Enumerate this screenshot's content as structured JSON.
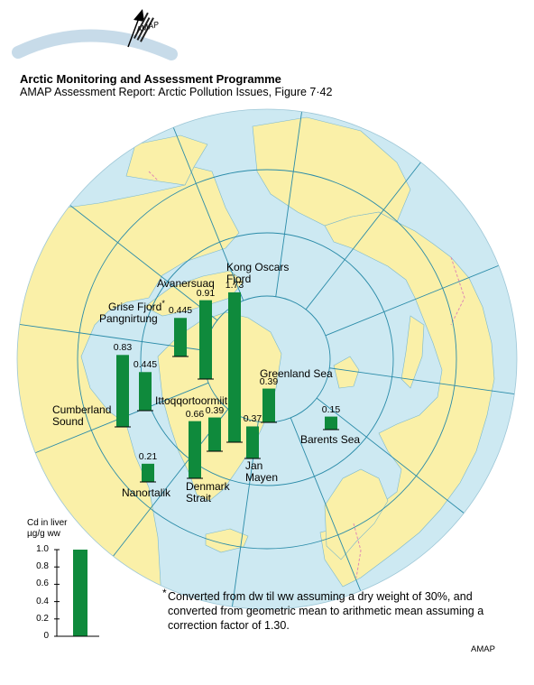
{
  "header": {
    "title": "Arctic Monitoring and Assessment Programme",
    "subtitle": "AMAP Assessment Report: Arctic Pollution Issues, Figure 7·42"
  },
  "logo": {
    "text": "AMAP"
  },
  "colors": {
    "ocean": "#cde9f2",
    "land": "#faf0a8",
    "bar": "#0f8a3c",
    "grid": "#2a8ba8",
    "border": "#e08ab4"
  },
  "chart_data": {
    "type": "bar",
    "unit_label": "Cd in liver µg/g ww",
    "legend_scale": {
      "ticks": [
        "1.0",
        "0.8",
        "0.6",
        "0.4",
        "0.2",
        "0"
      ],
      "max": 1.0,
      "bar_value": 1.0
    },
    "sites": [
      {
        "name": "Cumberland Sound",
        "value": 0.83,
        "value_label": "0.83"
      },
      {
        "name": "Pangnirtung",
        "value": 0.445,
        "value_label": "0.445"
      },
      {
        "name": "Grise Fjord*",
        "value": 0.445,
        "value_label": "0.445"
      },
      {
        "name": "Avanersuaq",
        "value": 0.91,
        "value_label": "0.91"
      },
      {
        "name": "Kong Oscars Fjord",
        "value": 1.73,
        "value_label": "1.73"
      },
      {
        "name": "Ittoqqortoormiit",
        "value": 0.39,
        "value_label": "0.39"
      },
      {
        "name": "Denmark Strait",
        "value": 0.66,
        "value_label": "0.66"
      },
      {
        "name": "Jan Mayen",
        "value": 0.37,
        "value_label": "0.37"
      },
      {
        "name": "Greenland Sea",
        "value": 0.39,
        "value_label": "0.39"
      },
      {
        "name": "Barents Sea",
        "value": 0.15,
        "value_label": "0.15"
      },
      {
        "name": "Nanortalik",
        "value": 0.21,
        "value_label": "0.21"
      }
    ]
  },
  "labels": {
    "cumberland": "Cumberland Sound",
    "pangnirtung": "Pangnirtung",
    "grise": "Grise Fjord",
    "avanersuaq": "Avanersuaq",
    "kong": "Kong Oscars Fjord",
    "ittoq": "Ittoqqortoormiit",
    "denmark": "Denmark Strait",
    "janmayen": "Jan Mayen",
    "greenland_sea": "Greenland Sea",
    "barents": "Barents Sea",
    "nanortalik": "Nanortalik"
  },
  "footnote": "Converted from dw til ww assuming a dry weight of 30%, and converted from geometric mean to arithmetic mean assuming a correction factor of 1.30.",
  "footnote_marker": "*",
  "credit": "AMAP"
}
